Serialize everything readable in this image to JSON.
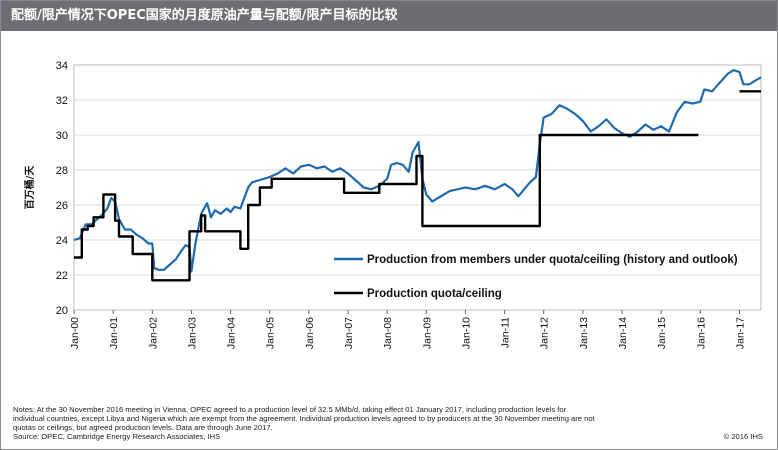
{
  "header": {
    "title": "配额/限产情况下OPEC国家的月度原油产量与配额/限产目标的比较"
  },
  "chart_data": {
    "type": "line",
    "title": "配额/限产情况下OPEC国家的月度原油产量与配额/限产目标的比较",
    "ylabel": "百万桶/天",
    "xlabel": "",
    "ylim": [
      20,
      34
    ],
    "yticks": [
      20,
      22,
      24,
      26,
      28,
      30,
      32,
      34
    ],
    "xlim": [
      2000.0,
      2017.55
    ],
    "xtick_labels": [
      "Jan-00",
      "Jan-01",
      "Jan-02",
      "Jan-03",
      "Jan-04",
      "Jan-05",
      "Jan-06",
      "Jan-07",
      "Jan-08",
      "Jan-09",
      "Jan-10",
      "Jan-11",
      "Jan-12",
      "Jan-13",
      "Jan-14",
      "Jan-15",
      "Jan-16",
      "Jan-17"
    ],
    "grid": "horizontal",
    "legend_position": "center-right",
    "series": [
      {
        "name": "Production from members under quota/ceiling (history and outlook)",
        "color": "#1f6aad",
        "points": [
          [
            2000.0,
            24.0
          ],
          [
            2000.15,
            24.1
          ],
          [
            2000.3,
            24.9
          ],
          [
            2000.45,
            24.9
          ],
          [
            2000.55,
            25.1
          ],
          [
            2000.7,
            25.4
          ],
          [
            2000.85,
            25.8
          ],
          [
            2000.95,
            26.4
          ],
          [
            2001.05,
            26.2
          ],
          [
            2001.15,
            25.2
          ],
          [
            2001.3,
            24.6
          ],
          [
            2001.45,
            24.6
          ],
          [
            2001.6,
            24.3
          ],
          [
            2001.75,
            24.1
          ],
          [
            2001.9,
            23.8
          ],
          [
            2002.0,
            23.8
          ],
          [
            2002.05,
            22.4
          ],
          [
            2002.15,
            22.3
          ],
          [
            2002.3,
            22.3
          ],
          [
            2002.45,
            22.6
          ],
          [
            2002.6,
            22.9
          ],
          [
            2002.75,
            23.4
          ],
          [
            2002.85,
            23.7
          ],
          [
            2002.95,
            23.6
          ],
          [
            2003.0,
            22.2
          ],
          [
            2003.1,
            23.8
          ],
          [
            2003.25,
            25.5
          ],
          [
            2003.4,
            26.1
          ],
          [
            2003.5,
            25.3
          ],
          [
            2003.6,
            25.7
          ],
          [
            2003.75,
            25.5
          ],
          [
            2003.9,
            25.8
          ],
          [
            2004.0,
            25.6
          ],
          [
            2004.1,
            25.9
          ],
          [
            2004.25,
            25.8
          ],
          [
            2004.35,
            26.4
          ],
          [
            2004.45,
            27.0
          ],
          [
            2004.55,
            27.3
          ],
          [
            2004.7,
            27.4
          ],
          [
            2004.85,
            27.5
          ],
          [
            2005.0,
            27.6
          ],
          [
            2005.2,
            27.8
          ],
          [
            2005.4,
            28.1
          ],
          [
            2005.6,
            27.8
          ],
          [
            2005.8,
            28.2
          ],
          [
            2006.0,
            28.3
          ],
          [
            2006.2,
            28.1
          ],
          [
            2006.4,
            28.2
          ],
          [
            2006.6,
            27.9
          ],
          [
            2006.8,
            28.1
          ],
          [
            2007.0,
            27.8
          ],
          [
            2007.2,
            27.4
          ],
          [
            2007.4,
            27.0
          ],
          [
            2007.6,
            26.9
          ],
          [
            2007.8,
            27.1
          ],
          [
            2008.0,
            27.5
          ],
          [
            2008.1,
            28.3
          ],
          [
            2008.25,
            28.4
          ],
          [
            2008.4,
            28.3
          ],
          [
            2008.55,
            27.9
          ],
          [
            2008.65,
            29.0
          ],
          [
            2008.8,
            29.6
          ],
          [
            2008.9,
            27.5
          ],
          [
            2009.0,
            26.6
          ],
          [
            2009.15,
            26.2
          ],
          [
            2009.3,
            26.4
          ],
          [
            2009.45,
            26.6
          ],
          [
            2009.6,
            26.8
          ],
          [
            2009.8,
            26.9
          ],
          [
            2010.0,
            27.0
          ],
          [
            2010.25,
            26.9
          ],
          [
            2010.5,
            27.1
          ],
          [
            2010.75,
            26.9
          ],
          [
            2011.0,
            27.2
          ],
          [
            2011.2,
            26.9
          ],
          [
            2011.35,
            26.5
          ],
          [
            2011.5,
            26.9
          ],
          [
            2011.65,
            27.3
          ],
          [
            2011.8,
            27.6
          ],
          [
            2011.9,
            29.5
          ],
          [
            2012.0,
            31.0
          ],
          [
            2012.2,
            31.2
          ],
          [
            2012.4,
            31.7
          ],
          [
            2012.6,
            31.5
          ],
          [
            2012.8,
            31.2
          ],
          [
            2013.0,
            30.8
          ],
          [
            2013.2,
            30.2
          ],
          [
            2013.4,
            30.5
          ],
          [
            2013.6,
            30.9
          ],
          [
            2013.8,
            30.4
          ],
          [
            2014.0,
            30.1
          ],
          [
            2014.2,
            29.9
          ],
          [
            2014.4,
            30.2
          ],
          [
            2014.6,
            30.6
          ],
          [
            2014.8,
            30.3
          ],
          [
            2015.0,
            30.5
          ],
          [
            2015.2,
            30.2
          ],
          [
            2015.4,
            31.3
          ],
          [
            2015.6,
            31.9
          ],
          [
            2015.8,
            31.8
          ],
          [
            2016.0,
            31.9
          ],
          [
            2016.1,
            32.6
          ],
          [
            2016.3,
            32.5
          ],
          [
            2016.5,
            33.0
          ],
          [
            2016.7,
            33.5
          ],
          [
            2016.85,
            33.7
          ],
          [
            2017.0,
            33.6
          ],
          [
            2017.1,
            32.9
          ],
          [
            2017.25,
            32.9
          ],
          [
            2017.4,
            33.1
          ],
          [
            2017.55,
            33.3
          ]
        ]
      },
      {
        "name": "Production quota/ceiling",
        "color": "#000000",
        "points": [
          [
            2000.0,
            23.0
          ],
          [
            2000.2,
            23.0
          ],
          [
            2000.2,
            24.6
          ],
          [
            2000.35,
            24.6
          ],
          [
            2000.35,
            24.8
          ],
          [
            2000.5,
            24.8
          ],
          [
            2000.5,
            25.3
          ],
          [
            2000.75,
            25.3
          ],
          [
            2000.75,
            26.6
          ],
          [
            2001.05,
            26.6
          ],
          [
            2001.05,
            25.1
          ],
          [
            2001.15,
            25.1
          ],
          [
            2001.15,
            24.2
          ],
          [
            2001.5,
            24.2
          ],
          [
            2001.5,
            23.2
          ],
          [
            2002.0,
            23.2
          ],
          [
            2002.0,
            21.7
          ],
          [
            2002.95,
            21.7
          ],
          [
            2002.95,
            24.5
          ],
          [
            2003.25,
            24.5
          ],
          [
            2003.25,
            25.4
          ],
          [
            2003.35,
            25.4
          ],
          [
            2003.35,
            24.5
          ],
          [
            2004.25,
            24.5
          ],
          [
            2004.25,
            23.5
          ],
          [
            2004.45,
            23.5
          ],
          [
            2004.45,
            26.0
          ],
          [
            2004.75,
            26.0
          ],
          [
            2004.75,
            27.0
          ],
          [
            2005.05,
            27.0
          ],
          [
            2005.05,
            27.5
          ],
          [
            2006.9,
            27.5
          ],
          [
            2006.9,
            26.7
          ],
          [
            2007.8,
            26.7
          ],
          [
            2007.8,
            27.2
          ],
          [
            2008.75,
            27.2
          ],
          [
            2008.75,
            28.8
          ],
          [
            2008.9,
            28.8
          ],
          [
            2008.9,
            24.8
          ],
          [
            2011.9,
            24.8
          ],
          [
            2011.9,
            30.0
          ],
          [
            2015.95,
            30.0
          ]
        ]
      },
      {
        "name": "",
        "color": "#000000",
        "points": [
          [
            2017.0,
            32.5
          ],
          [
            2017.55,
            32.5
          ]
        ]
      }
    ]
  },
  "footer": {
    "notes": [
      "Notes: At the 30 November 2016 meeting in Vienna, OPEC agreed to a production level of 32.5 MMb/d, taking effect 01 January 2017, including production levels for",
      "individual countries, except Libya and Nigeria which are exempt from the agreement. Individual production levels agreed to by producers at the 30 November meeting are not",
      "quotas or ceilings, but agreed production levels. Data are through June 2017.",
      "Source: OPEC, Cambridge Energy Research Associates, IHS"
    ],
    "copyright": "© 2016 IHS"
  },
  "colors": {
    "title_bar": "#6d6e71",
    "production": "#1f6aad",
    "quota": "#000000",
    "grid": "#d9d9d9"
  }
}
